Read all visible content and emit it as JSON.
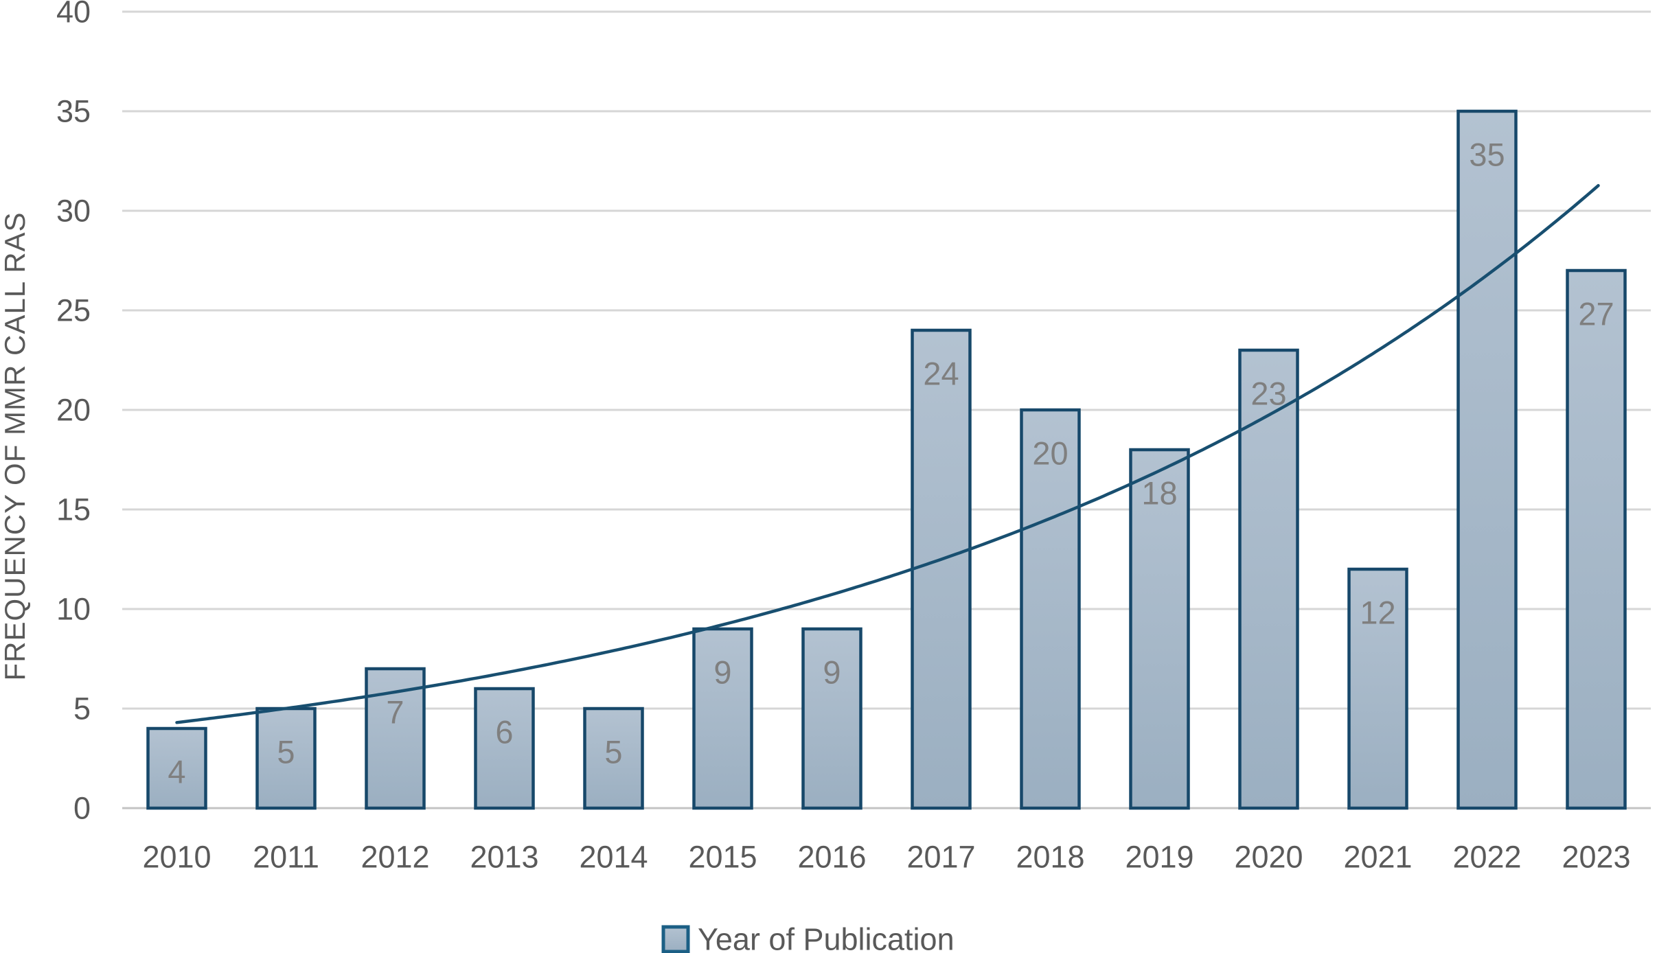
{
  "chart_data": {
    "type": "bar",
    "title": "",
    "categories": [
      "2010",
      "2011",
      "2012",
      "2013",
      "2014",
      "2015",
      "2016",
      "2017",
      "2018",
      "2019",
      "2020",
      "2021",
      "2022",
      "2023"
    ],
    "values": [
      4,
      5,
      7,
      6,
      5,
      9,
      9,
      24,
      20,
      18,
      23,
      12,
      35,
      27
    ],
    "data_labels_shown": true,
    "xlabel": "",
    "ylabel": "FREQUENCY OF MMR CALL RAS",
    "ylim": [
      0,
      40
    ],
    "yticks": [
      0,
      5,
      10,
      15,
      20,
      25,
      30,
      35,
      40
    ],
    "grid": "horizontal",
    "legend_label": "Year of Publication",
    "legend_position": "bottom-center",
    "trendline": {
      "type": "exponential",
      "span": [
        "2010",
        "2023"
      ],
      "value_at_2010": 4.3,
      "value_at_2023_end": 31.4
    }
  },
  "colors": {
    "bar_fill_top": "#b3c2d1",
    "bar_fill_bottom": "#9bafc1",
    "bar_border": "#17486a",
    "trend_line": "#184f70",
    "gridline": "#d6d6d6",
    "baseline": "#c3c3c3",
    "axis_text": "#595959",
    "data_label_text": "#7f7f7f",
    "legend_swatch_border": "#1b5f85",
    "background": "#ffffff"
  }
}
